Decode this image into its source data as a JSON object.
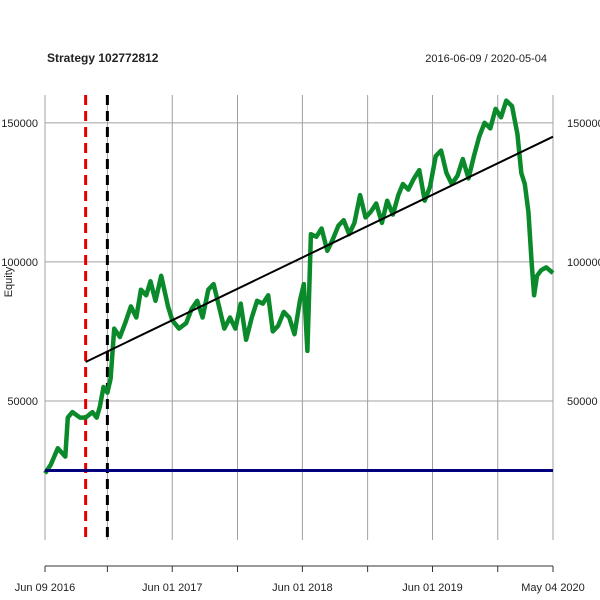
{
  "chart_data": {
    "type": "line",
    "title": "Strategy 102772812",
    "date_range": "2016-06-09 / 2020-05-04",
    "ylabel": "Equity",
    "xlabel": "",
    "xlim": [
      "2016-06-09",
      "2020-05-04"
    ],
    "ylim": [
      0,
      160000
    ],
    "grid": true,
    "x_ticks": [
      {
        "date": "2016-06-09",
        "label": "Jun 09 2016"
      },
      {
        "date": "2016-12-01",
        "label": ""
      },
      {
        "date": "2017-06-01",
        "label": "Jun 01 2017"
      },
      {
        "date": "2017-12-01",
        "label": ""
      },
      {
        "date": "2018-06-01",
        "label": "Jun 01 2018"
      },
      {
        "date": "2018-12-01",
        "label": ""
      },
      {
        "date": "2019-06-01",
        "label": "Jun 01 2019"
      },
      {
        "date": "2019-12-01",
        "label": ""
      },
      {
        "date": "2020-05-04",
        "label": "May 04 2020"
      }
    ],
    "y_ticks": [
      {
        "value": 50000,
        "label": "50000"
      },
      {
        "value": 100000,
        "label": "100000"
      },
      {
        "value": 150000,
        "label": "150000"
      }
    ],
    "colors": {
      "equity": "#0a8a2a",
      "trend": "#000000",
      "baseline": "#00007f",
      "marker_red": "#e00000",
      "marker_black": "#000000",
      "grid": "#a0a0a0"
    },
    "series": [
      {
        "kind": "equity",
        "x": [
          "2016-06-09",
          "2016-06-25",
          "2016-07-15",
          "2016-08-05",
          "2016-08-12",
          "2016-08-25",
          "2016-09-15",
          "2016-10-01",
          "2016-10-20",
          "2016-11-01",
          "2016-11-10",
          "2016-11-20",
          "2016-12-01",
          "2016-12-10",
          "2016-12-20",
          "2017-01-05",
          "2017-01-20",
          "2017-02-05",
          "2017-02-20",
          "2017-03-05",
          "2017-03-20",
          "2017-04-01",
          "2017-04-15",
          "2017-05-01",
          "2017-05-20",
          "2017-06-01",
          "2017-06-20",
          "2017-07-10",
          "2017-07-25",
          "2017-08-10",
          "2017-08-25",
          "2017-09-10",
          "2017-09-25",
          "2017-10-10",
          "2017-10-25",
          "2017-11-10",
          "2017-11-25",
          "2017-12-10",
          "2017-12-25",
          "2018-01-10",
          "2018-01-25",
          "2018-02-10",
          "2018-02-25",
          "2018-03-10",
          "2018-03-25",
          "2018-04-10",
          "2018-04-25",
          "2018-05-10",
          "2018-05-25",
          "2018-06-05",
          "2018-06-15",
          "2018-06-25",
          "2018-07-10",
          "2018-07-25",
          "2018-08-10",
          "2018-08-25",
          "2018-09-10",
          "2018-09-25",
          "2018-10-10",
          "2018-10-25",
          "2018-11-10",
          "2018-11-25",
          "2018-12-10",
          "2018-12-25",
          "2019-01-10",
          "2019-01-25",
          "2019-02-10",
          "2019-02-25",
          "2019-03-10",
          "2019-03-25",
          "2019-04-10",
          "2019-04-25",
          "2019-05-10",
          "2019-05-25",
          "2019-06-10",
          "2019-06-25",
          "2019-07-10",
          "2019-07-25",
          "2019-08-10",
          "2019-08-25",
          "2019-09-10",
          "2019-09-25",
          "2019-10-10",
          "2019-10-25",
          "2019-11-10",
          "2019-11-25",
          "2019-12-10",
          "2019-12-25",
          "2020-01-10",
          "2020-01-25",
          "2020-02-05",
          "2020-02-15",
          "2020-02-25",
          "2020-03-05",
          "2020-03-12",
          "2020-03-20",
          "2020-04-01",
          "2020-04-15",
          "2020-05-04"
        ],
        "values": [
          24000,
          27000,
          33000,
          30000,
          44000,
          46000,
          44000,
          44000,
          46000,
          44000,
          48000,
          55000,
          53000,
          58000,
          76000,
          73000,
          78000,
          84000,
          80000,
          90000,
          88000,
          93000,
          86000,
          95000,
          84000,
          79000,
          76000,
          78000,
          83000,
          86000,
          80000,
          90000,
          92000,
          84000,
          76000,
          80000,
          76000,
          85000,
          72000,
          80000,
          86000,
          85000,
          88000,
          75000,
          77000,
          82000,
          80000,
          74000,
          86000,
          92000,
          68000,
          110000,
          109000,
          112000,
          104000,
          108000,
          113000,
          115000,
          110000,
          114000,
          124000,
          116000,
          118000,
          121000,
          114000,
          122000,
          117000,
          124000,
          128000,
          126000,
          130000,
          133000,
          122000,
          127000,
          138000,
          140000,
          132000,
          128000,
          131000,
          137000,
          130000,
          138000,
          145000,
          150000,
          148000,
          155000,
          152000,
          158000,
          156000,
          146000,
          132000,
          128000,
          118000,
          100000,
          88000,
          95000,
          97000,
          98000,
          96000
        ]
      },
      {
        "kind": "trend",
        "x": [
          "2016-10-01",
          "2020-05-04"
        ],
        "values": [
          64000,
          145000
        ]
      },
      {
        "kind": "baseline",
        "x": [
          "2016-06-09",
          "2020-05-04"
        ],
        "values": [
          25000,
          25000
        ]
      }
    ],
    "vlines": [
      {
        "date": "2016-10-01",
        "color_key": "marker_red"
      },
      {
        "date": "2016-12-01",
        "color_key": "marker_black"
      }
    ]
  }
}
